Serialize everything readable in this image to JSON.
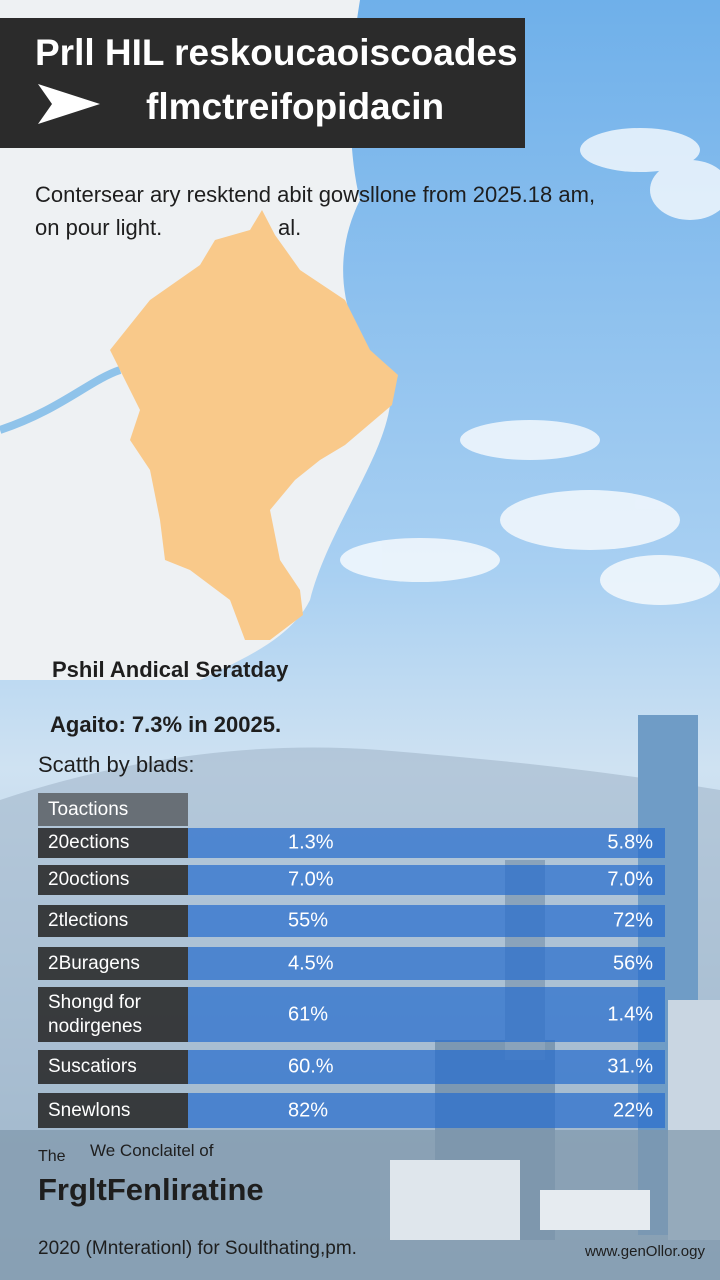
{
  "header": {
    "title_line1": "Prll HIL reskoucaoiscoades",
    "title_line2": "flmctreifopidacin"
  },
  "intro": {
    "line1": "Contersear ary resktend abit gowsllone from 2025.18 am,",
    "line2": "on pour light.",
    "line2_end": "al."
  },
  "map": {
    "label": "Pshil Andical Seratday"
  },
  "stat": "Agaito: 7.3% in 20025.",
  "table": {
    "caption": "Scatth by blads:",
    "header": "Toactions",
    "rows": [
      [
        "20ections",
        "1.3%",
        "5.8%"
      ],
      [
        "20octions",
        "7.0%",
        "7.0%"
      ],
      [
        "2tlections",
        "55%",
        "72%"
      ],
      [
        "2Buragens",
        "4.5%",
        "56%"
      ],
      [
        "Shongd for nodirgenes",
        "61%",
        "1.4%"
      ],
      [
        "Suscatiors",
        "60.%",
        "31.%"
      ],
      [
        "Snewlons",
        "82%",
        "22%"
      ]
    ]
  },
  "footer": {
    "small1": "The",
    "small2": "We Conclaitel of",
    "brand": "FrgltFenliratine",
    "note": "2020 (Mnterationl) for Soulthating,pm.",
    "url": "www.genOllor.ogy"
  }
}
